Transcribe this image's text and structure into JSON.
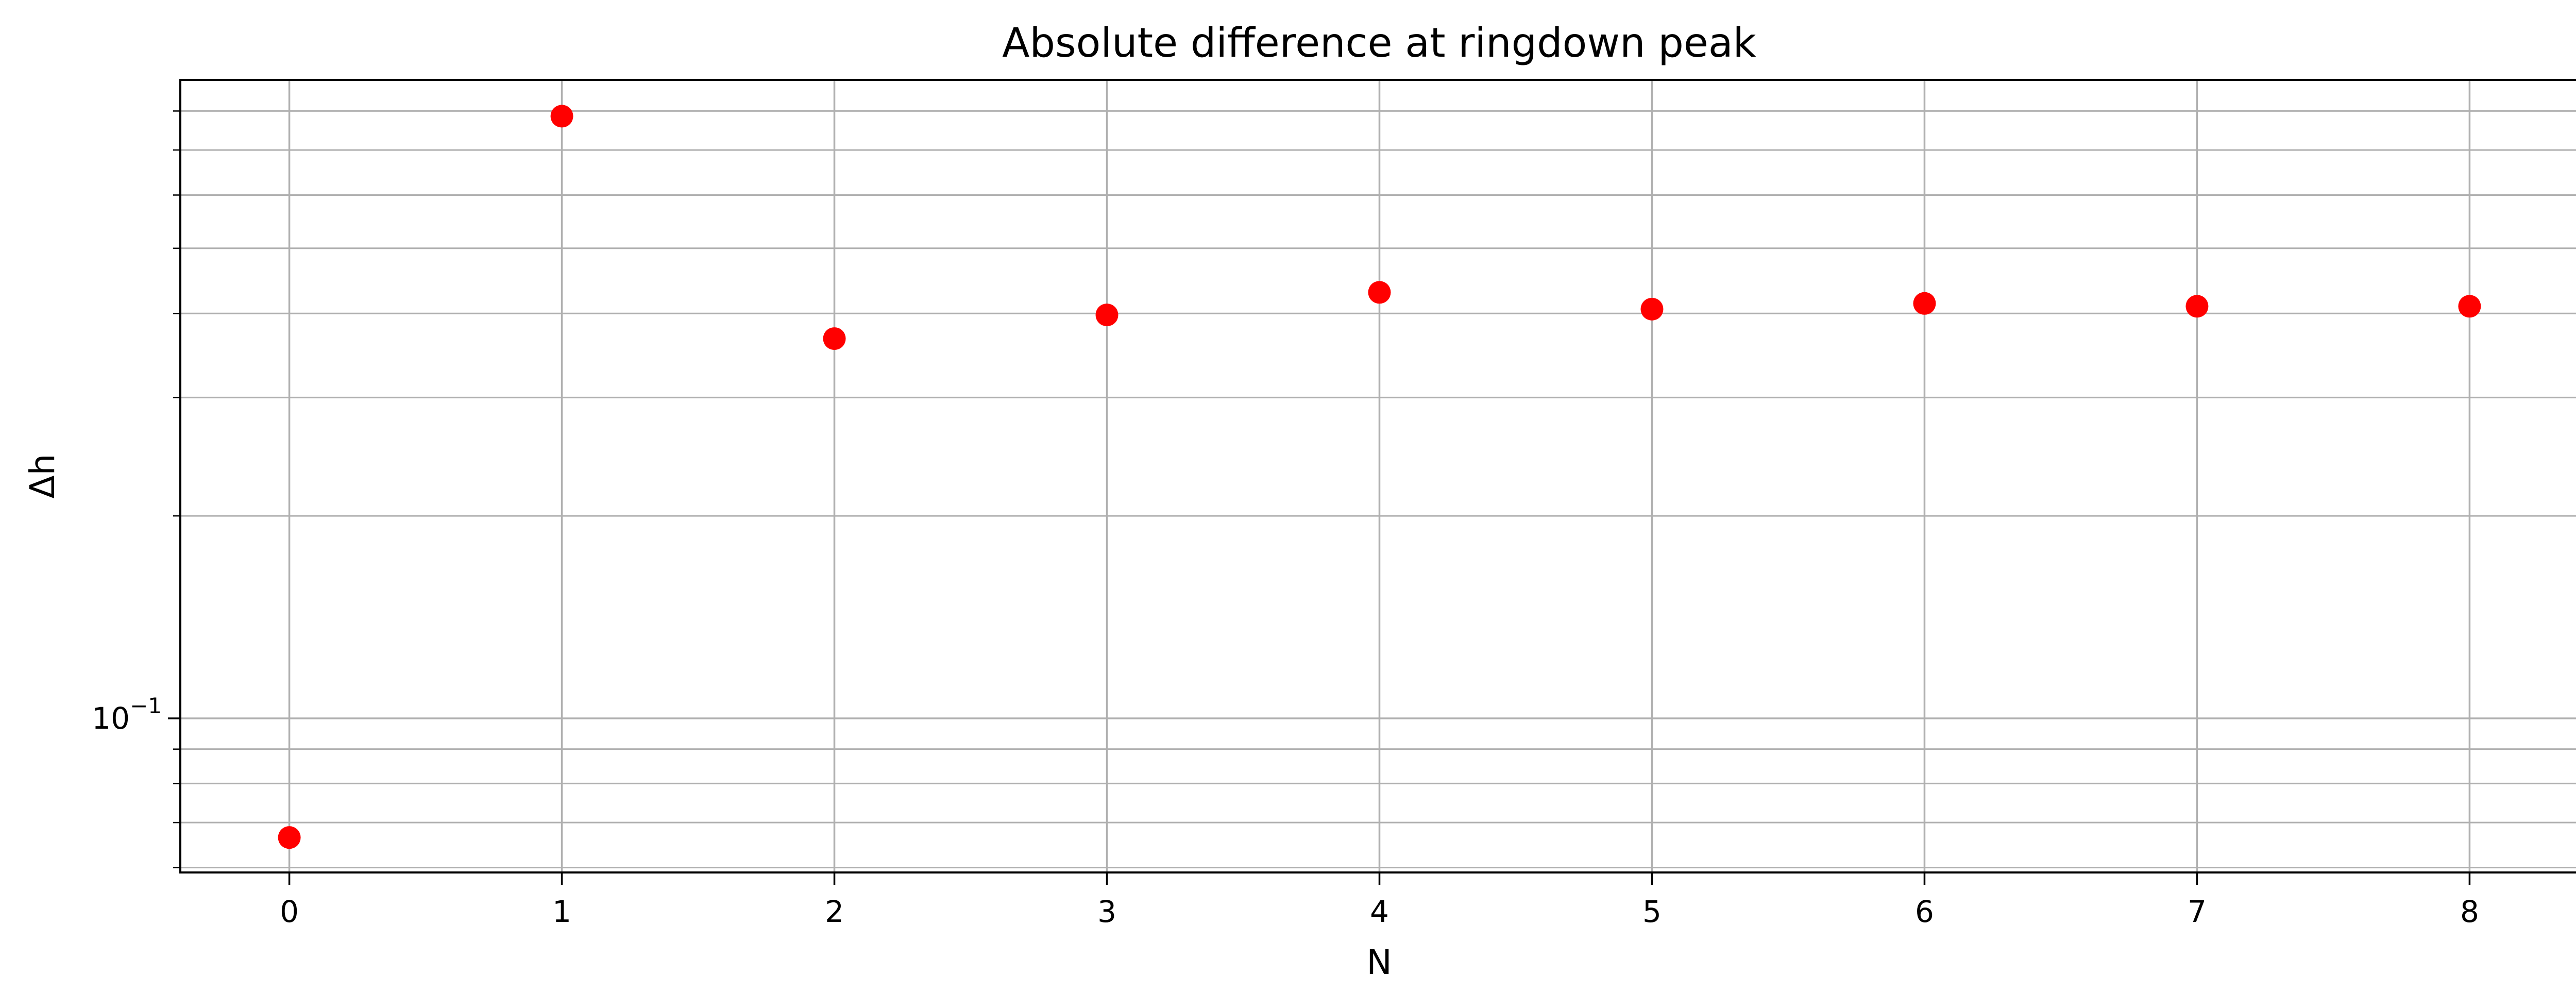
{
  "chart_data": {
    "type": "scatter",
    "title": "Absolute difference at ringdown peak",
    "xlabel": "N",
    "ylabel": "Δh",
    "x": [
      0,
      1,
      2,
      3,
      4,
      5,
      6,
      7,
      8
    ],
    "y": [
      0.0665,
      0.786,
      0.367,
      0.398,
      0.43,
      0.406,
      0.414,
      0.41,
      0.41
    ],
    "xlim": [
      -0.4,
      8.4
    ],
    "ylim": [
      0.059,
      0.89
    ],
    "yscale": "log",
    "xticks": [
      "0",
      "1",
      "2",
      "3",
      "4",
      "5",
      "6",
      "7",
      "8"
    ],
    "yticks": [
      {
        "base": "10",
        "exponent": "−1",
        "value": 0.1
      }
    ],
    "grid": true,
    "marker_color": "#ff0000"
  }
}
